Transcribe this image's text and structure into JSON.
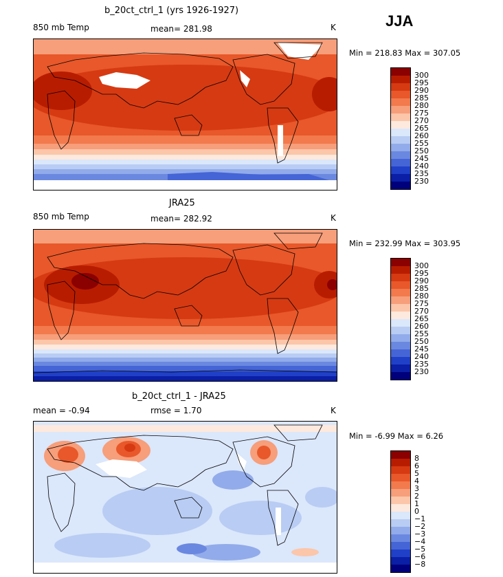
{
  "season": "JJA",
  "panels": [
    {
      "title": "b_20ct_ctrl_1 (yrs 1926-1927)",
      "left_label": "850 mb Temp",
      "mid_label": "mean=  281.98",
      "units": "K",
      "stats": "Min = 218.83  Max = 307.05",
      "colorbar_ticks": [
        "300",
        "295",
        "290",
        "285",
        "280",
        "275",
        "270",
        "265",
        "260",
        "255",
        "250",
        "245",
        "240",
        "235",
        "230"
      ]
    },
    {
      "title": "JRA25",
      "left_label": "850 mb Temp",
      "mid_label": "mean=  282.92",
      "units": "K",
      "stats": "Min = 232.99  Max = 303.95",
      "colorbar_ticks": [
        "300",
        "295",
        "290",
        "285",
        "280",
        "275",
        "270",
        "265",
        "260",
        "255",
        "250",
        "245",
        "240",
        "235",
        "230"
      ]
    },
    {
      "title": "b_20ct_ctrl_1 - JRA25",
      "left_label": "mean =   -0.94",
      "mid_label": "rmse =    1.70",
      "units": "K",
      "stats": "Min =   -6.99  Max =    6.26",
      "colorbar_ticks": [
        "8",
        "6",
        "5",
        "4",
        "3",
        "2",
        "1",
        "0",
        "−1",
        "−2",
        "−3",
        "−4",
        "−5",
        "−6",
        "−8"
      ]
    }
  ],
  "colors": {
    "temp_scale": [
      "#8b0000",
      "#b81c00",
      "#d63a12",
      "#e8582a",
      "#f27a4d",
      "#f79e7a",
      "#fbc6aa",
      "#fde9dd",
      "#dbe7fb",
      "#b9ccf3",
      "#92abea",
      "#6b88e0",
      "#4565d6",
      "#2040c8",
      "#0a1fa5",
      "#00007c"
    ],
    "diff_scale": [
      "#8b0000",
      "#b81c00",
      "#d63a12",
      "#e8582a",
      "#f27a4d",
      "#f79e7a",
      "#fbc6aa",
      "#fde9dd",
      "#dbe7fb",
      "#b9ccf3",
      "#92abea",
      "#6b88e0",
      "#4565d6",
      "#2040c8",
      "#0a1fa5",
      "#00007c"
    ],
    "coastline": "#000000",
    "missing": "#ffffff"
  }
}
